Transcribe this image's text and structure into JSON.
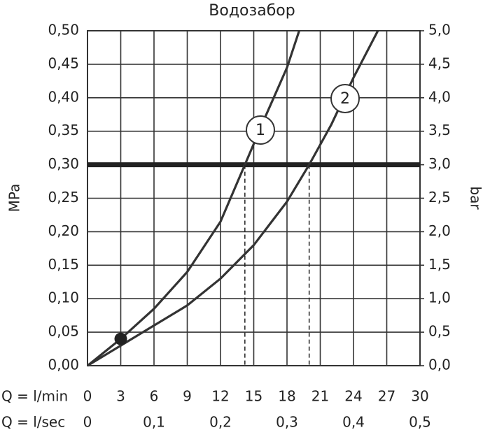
{
  "chart_data": {
    "type": "line",
    "title": "Водозабор",
    "y_label": "MPa",
    "y2_label": "bar",
    "x_label": "Q = l/min",
    "x2_label": "Q = l/sec",
    "xlim": [
      0,
      30
    ],
    "xticks": [
      0,
      3,
      6,
      9,
      12,
      15,
      18,
      21,
      24,
      27,
      30
    ],
    "x2lim": [
      0,
      0.5
    ],
    "x2ticks": [
      0,
      {
        "value": 0.1,
        "label": "0,1"
      },
      {
        "value": 0.2,
        "label": "0,2"
      },
      {
        "value": 0.3,
        "label": "0,3"
      },
      {
        "value": 0.4,
        "label": "0,4"
      },
      {
        "value": 0.5,
        "label": "0,5"
      }
    ],
    "ylim": [
      0,
      0.5
    ],
    "yticks": [
      {
        "value": 0,
        "label": "0,00"
      },
      {
        "value": 0.05,
        "label": "0,05"
      },
      {
        "value": 0.1,
        "label": "0,10"
      },
      {
        "value": 0.15,
        "label": "0,15"
      },
      {
        "value": 0.2,
        "label": "0,20"
      },
      {
        "value": 0.25,
        "label": "0,25"
      },
      {
        "value": 0.3,
        "label": "0,30"
      },
      {
        "value": 0.35,
        "label": "0,35"
      },
      {
        "value": 0.4,
        "label": "0,40"
      },
      {
        "value": 0.45,
        "label": "0,45"
      },
      {
        "value": 0.5,
        "label": "0,50"
      }
    ],
    "y2lim": [
      0,
      5
    ],
    "y2ticks": [
      {
        "value": 0,
        "label": "0,0"
      },
      {
        "value": 0.5,
        "label": "0,5"
      },
      {
        "value": 1,
        "label": "1,0"
      },
      {
        "value": 1.5,
        "label": "1,5"
      },
      {
        "value": 2,
        "label": "2,0"
      },
      {
        "value": 2.5,
        "label": "2,5"
      },
      {
        "value": 3,
        "label": "3,0"
      },
      {
        "value": 3.5,
        "label": "3,5"
      },
      {
        "value": 4,
        "label": "4,0"
      },
      {
        "value": 4.5,
        "label": "4,5"
      },
      {
        "value": 5,
        "label": "5,0"
      }
    ],
    "grid": true,
    "reference_line": 0.3,
    "marker": {
      "x": 3,
      "y": 0.04
    },
    "series": [
      {
        "name": "1",
        "color": "#333333",
        "x": [
          0,
          3,
          6,
          9,
          12,
          14.2,
          16,
          18,
          19.1
        ],
        "values": [
          0,
          0.04,
          0.085,
          0.14,
          0.215,
          0.3,
          0.37,
          0.445,
          0.5
        ]
      },
      {
        "name": "2",
        "color": "#333333",
        "x": [
          0,
          3,
          6,
          9,
          12,
          15,
          18,
          20,
          22,
          24,
          26.2
        ],
        "values": [
          0,
          0.03,
          0.06,
          0.09,
          0.13,
          0.18,
          0.245,
          0.3,
          0.36,
          0.43,
          0.5
        ]
      }
    ]
  }
}
